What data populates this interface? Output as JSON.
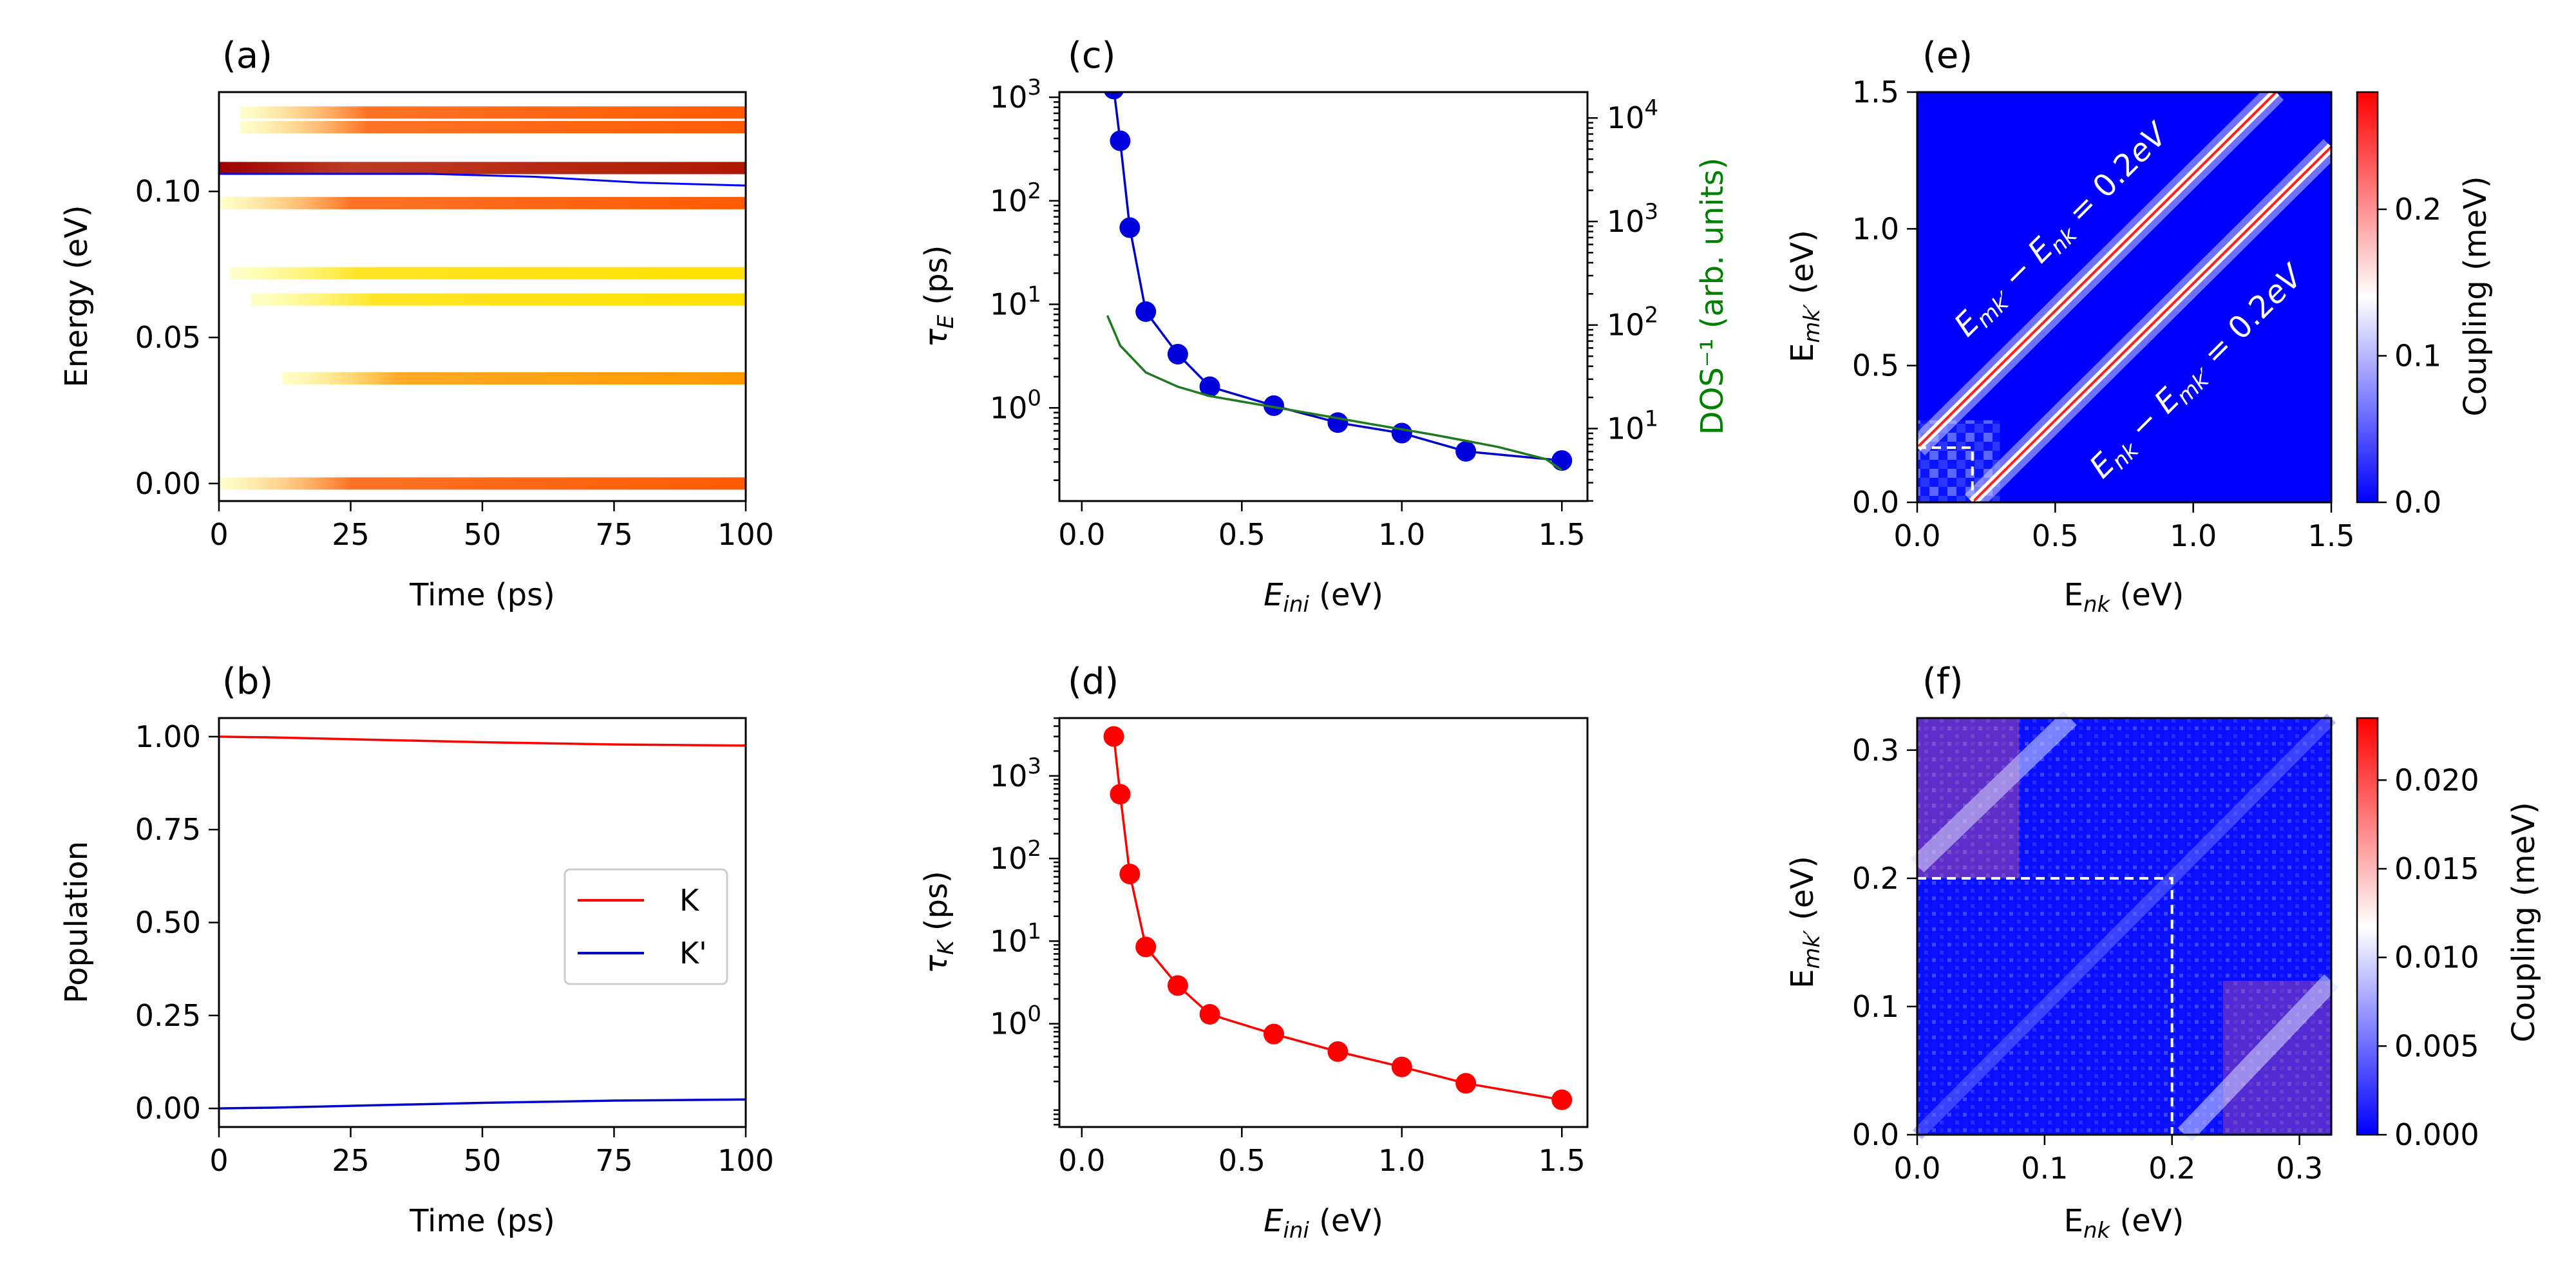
{
  "chart_data": [
    {
      "panel": "(a)",
      "type": "heatmap",
      "xlabel": "Time (ps)",
      "ylabel": "Energy (eV)",
      "xlim": [
        0,
        100
      ],
      "ylim": [
        -0.006,
        0.134
      ],
      "xticks": [
        0,
        25,
        50,
        75,
        100
      ],
      "yticks": [
        0.0,
        0.05,
        0.1
      ],
      "ytick_labels": [
        "0.00",
        "0.05",
        "0.10"
      ],
      "colormap": "hot",
      "levels": [
        {
          "energy": 0.0,
          "t_start": 0,
          "intensity": 0.55
        },
        {
          "energy": 0.036,
          "t_start": 12,
          "intensity": 0.35
        },
        {
          "energy": 0.063,
          "t_start": 6,
          "intensity": 0.2
        },
        {
          "energy": 0.072,
          "t_start": 2,
          "intensity": 0.15
        },
        {
          "energy": 0.096,
          "t_start": 0,
          "intensity": 0.7
        },
        {
          "energy": 0.108,
          "t_start": 0,
          "intensity": 0.95
        },
        {
          "energy": 0.122,
          "t_start": 4,
          "intensity": 0.6
        },
        {
          "energy": 0.127,
          "t_start": 4,
          "intensity": 0.55
        }
      ],
      "series": [
        {
          "color": "#0000ff",
          "x": [
            0,
            20,
            40,
            60,
            80,
            100
          ],
          "y": [
            0.106,
            0.106,
            0.106,
            0.105,
            0.103,
            0.102
          ]
        }
      ]
    },
    {
      "panel": "(b)",
      "type": "line",
      "xlabel": "Time (ps)",
      "ylabel": "Population",
      "xlim": [
        0,
        100
      ],
      "ylim": [
        -0.05,
        1.05
      ],
      "xticks": [
        0,
        25,
        50,
        75,
        100
      ],
      "yticks": [
        0.0,
        0.25,
        0.5,
        0.75,
        1.0
      ],
      "ytick_labels": [
        "0.00",
        "0.25",
        "0.50",
        "0.75",
        "1.00"
      ],
      "legend": "center-right",
      "series": [
        {
          "name": "K",
          "color": "#ff0000",
          "x": [
            0,
            10,
            25,
            50,
            75,
            100
          ],
          "y": [
            1.0,
            0.998,
            0.993,
            0.985,
            0.979,
            0.976
          ]
        },
        {
          "name": "K'",
          "color": "#0000cc",
          "x": [
            0,
            10,
            25,
            50,
            75,
            100
          ],
          "y": [
            0.0,
            0.002,
            0.007,
            0.015,
            0.021,
            0.024
          ]
        }
      ]
    },
    {
      "panel": "(c)",
      "type": "line",
      "xlabel": "E_ini (eV)",
      "ylabel": "τ_E (ps)",
      "ylabel2": "DOS⁻¹ (arb. units)",
      "xlim": [
        -0.07,
        1.58
      ],
      "ylim_log10": [
        -0.9,
        3.05
      ],
      "xticks": [
        0.0,
        0.5,
        1.0,
        1.5
      ],
      "yticks_log10": [
        0,
        1,
        2,
        3
      ],
      "y2lim_log10": [
        0.3,
        4.25
      ],
      "y2ticks_log10": [
        1,
        2,
        3,
        4
      ],
      "series": [
        {
          "name": "τ_E",
          "color": "#0000cc",
          "x": [
            0.1,
            0.12,
            0.15,
            0.2,
            0.3,
            0.4,
            0.6,
            0.8,
            1.0,
            1.2,
            1.5
          ],
          "y": [
            1200,
            380,
            55,
            8.5,
            3.3,
            1.6,
            1.05,
            0.72,
            0.57,
            0.38,
            0.31
          ]
        },
        {
          "name": "DOS⁻¹",
          "color": "#1e7a1e",
          "axis": "right",
          "x": [
            0.08,
            0.12,
            0.2,
            0.3,
            0.4,
            0.5,
            0.7,
            0.9,
            1.1,
            1.3,
            1.45,
            1.5
          ],
          "y": [
            7.8,
            4.0,
            2.2,
            1.6,
            1.3,
            1.15,
            0.9,
            0.7,
            0.55,
            0.42,
            0.32,
            0.25
          ]
        }
      ]
    },
    {
      "panel": "(d)",
      "type": "line",
      "xlabel": "E_ini (eV)",
      "ylabel": "τ_K (ps)",
      "xlim": [
        -0.07,
        1.58
      ],
      "ylim_log10": [
        -1.25,
        3.7
      ],
      "xticks": [
        0.0,
        0.5,
        1.0,
        1.5
      ],
      "yticks_log10": [
        0,
        1,
        2,
        3
      ],
      "series": [
        {
          "name": "τ_K",
          "color": "#ff0000",
          "x": [
            0.1,
            0.12,
            0.15,
            0.2,
            0.3,
            0.4,
            0.6,
            0.8,
            1.0,
            1.2,
            1.5
          ],
          "y": [
            3000,
            600,
            65,
            8.5,
            2.9,
            1.3,
            0.75,
            0.46,
            0.3,
            0.19,
            0.12
          ]
        }
      ]
    },
    {
      "panel": "(e)",
      "type": "heatmap",
      "xlabel": "E_nk (eV)",
      "ylabel": "E_mk' (eV)",
      "xlim": [
        0,
        1.5
      ],
      "ylim": [
        0,
        1.5
      ],
      "xticks": [
        0.0,
        0.5,
        1.0,
        1.5
      ],
      "yticks": [
        0.0,
        0.5,
        1.0,
        1.5
      ],
      "colorbar_label": "Coupling (meV)",
      "colorbar_range": [
        0,
        0.28
      ],
      "colorbar_ticks": [
        0.0,
        0.1,
        0.2
      ],
      "colormap": "bwr",
      "annotations": [
        "E_mk' − E_nk = 0.2eV",
        "E_nk − E_mk' = 0.2eV"
      ],
      "bands": [
        0.2,
        -0.2
      ],
      "dashed_box": [
        0,
        0.2
      ]
    },
    {
      "panel": "(f)",
      "type": "heatmap",
      "xlabel": "E_nk (eV)",
      "ylabel": "E_mk' (eV)",
      "xlim": [
        0,
        0.325
      ],
      "ylim": [
        0,
        0.325
      ],
      "xticks": [
        0.0,
        0.1,
        0.2,
        0.3
      ],
      "yticks": [
        0.0,
        0.1,
        0.2,
        0.3
      ],
      "colorbar_label": "Coupling (meV)",
      "colorbar_range": [
        0,
        0.0235
      ],
      "colorbar_ticks": [
        0.0,
        0.005,
        0.01,
        0.015,
        0.02
      ],
      "colorbar_tick_labels": [
        "0.000",
        "0.005",
        "0.010",
        "0.015",
        "0.020"
      ],
      "colormap": "bwr",
      "dashed_box": [
        0,
        0.2
      ]
    }
  ]
}
